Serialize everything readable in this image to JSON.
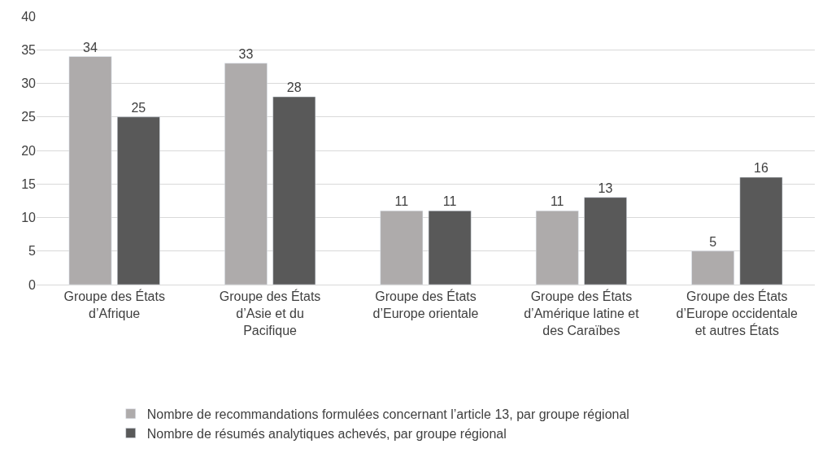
{
  "chart_data": {
    "type": "bar",
    "categories": [
      "Groupe des États d’Afrique",
      "Groupe des États d’Asie et du Pacifique",
      "Groupe des États d’Europe orientale",
      "Groupe des États d’Amérique latine et des Caraïbes",
      "Groupe des États d’Europe occidentale et autres États"
    ],
    "series": [
      {
        "name": "Nombre de recommandations formulées concernant l’article 13, par groupe régional",
        "color": "#aeabab",
        "values": [
          34,
          33,
          11,
          11,
          5
        ]
      },
      {
        "name": "Nombre de résumés analytiques achevés, par groupe régional",
        "color": "#595959",
        "values": [
          25,
          28,
          11,
          13,
          16
        ]
      }
    ],
    "ylim": [
      0,
      40
    ],
    "yticks": [
      0,
      5,
      10,
      15,
      20,
      25,
      30,
      35,
      40
    ],
    "grid": "y",
    "legend": "bottom",
    "data_labels": true
  }
}
